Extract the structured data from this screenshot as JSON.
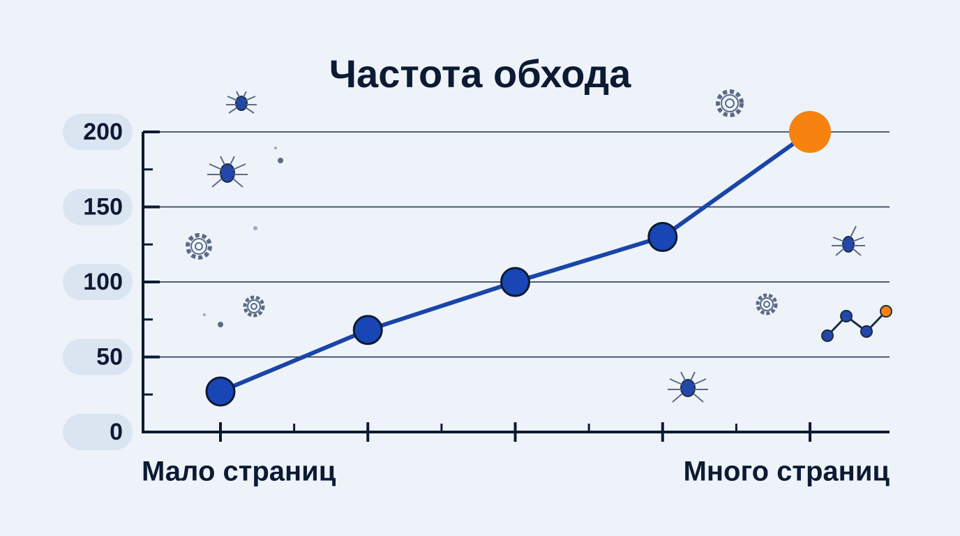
{
  "chart_data": {
    "type": "line",
    "title": "Частота обхода",
    "categories": [
      "Мало страниц",
      null,
      null,
      null,
      "Много страниц"
    ],
    "series": [
      {
        "color": "#1a45a8",
        "values": [
          27,
          68,
          100,
          130,
          200
        ],
        "point_colors": [
          "#1846b4",
          "#1846b4",
          "#1846b4",
          "#1846b4",
          "#f7820f"
        ]
      }
    ],
    "ylim": [
      0,
      200
    ],
    "yticks": [
      0,
      50,
      100,
      150,
      200
    ],
    "grid": true
  }
}
